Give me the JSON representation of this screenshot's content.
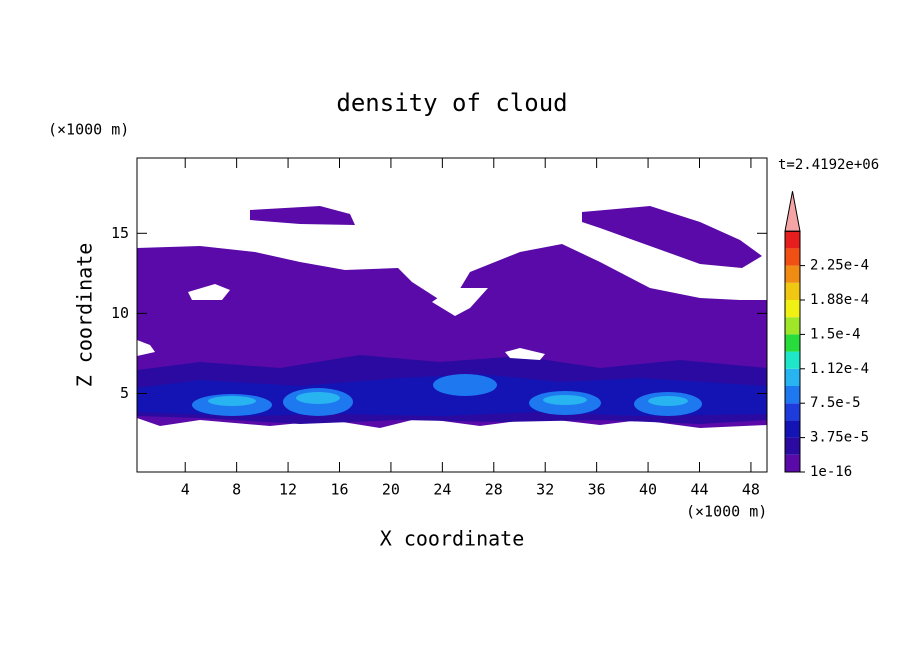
{
  "chart_data": {
    "type": "contour",
    "title": "density of cloud",
    "x_label": "X coordinate",
    "y_label": "Z coordinate",
    "x_unit": "(×1000 m)",
    "y_unit": "(×1000 m)",
    "annotation": "t=2.4192e+06",
    "xlim": [
      0.25,
      49.25
    ],
    "ylim": [
      0.1,
      19.7
    ],
    "xticks": [
      4,
      8,
      12,
      16,
      20,
      24,
      28,
      32,
      36,
      40,
      44,
      48
    ],
    "yticks": [
      5,
      10,
      15
    ],
    "colorbar": {
      "ticks": [
        {
          "value": 1e-16,
          "label": "1e-16"
        },
        {
          "value": 3.75e-05,
          "label": "3.75e-5"
        },
        {
          "value": 7.5e-05,
          "label": "7.5e-5"
        },
        {
          "value": 0.000112,
          "label": "1.12e-4"
        },
        {
          "value": 0.00015,
          "label": "1.5e-4"
        },
        {
          "value": 0.000188,
          "label": "1.88e-4"
        },
        {
          "value": 0.000225,
          "label": "2.25e-4"
        }
      ],
      "colors": [
        "#5a0aa8",
        "#2a0aa0",
        "#1414b4",
        "#1e3cdc",
        "#1e78f0",
        "#28b4f0",
        "#1ee6c8",
        "#28dc3c",
        "#a0e628",
        "#f0f014",
        "#f0c814",
        "#f08c14",
        "#f05014",
        "#e61e1e"
      ],
      "extend_color": "#f4a4a4"
    }
  }
}
